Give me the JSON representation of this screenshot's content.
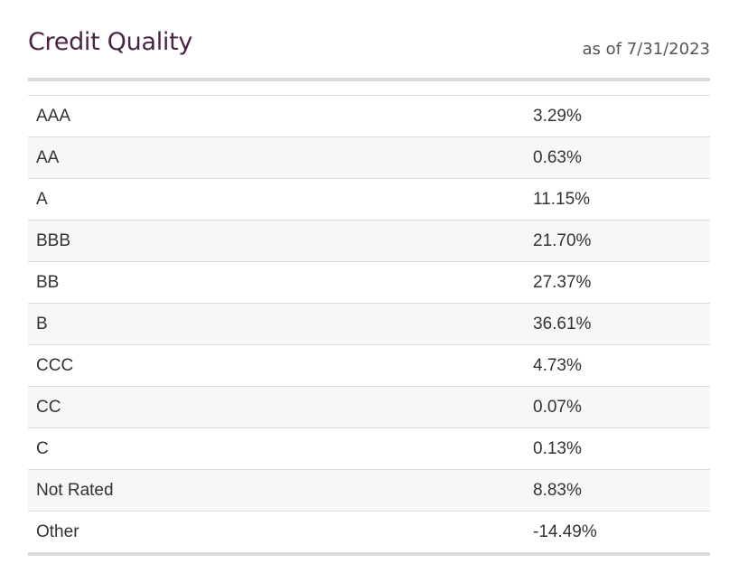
{
  "header": {
    "title": "Credit Quality",
    "as_of": "as of 7/31/2023"
  },
  "rows": [
    {
      "label": "AAA",
      "value": "3.29%"
    },
    {
      "label": "AA",
      "value": "0.63%"
    },
    {
      "label": "A",
      "value": "11.15%"
    },
    {
      "label": "BBB",
      "value": "21.70%"
    },
    {
      "label": "BB",
      "value": "27.37%"
    },
    {
      "label": "B",
      "value": "36.61%"
    },
    {
      "label": "CCC",
      "value": "4.73%"
    },
    {
      "label": "CC",
      "value": "0.07%"
    },
    {
      "label": "C",
      "value": "0.13%"
    },
    {
      "label": "Not Rated",
      "value": "8.83%"
    },
    {
      "label": "Other",
      "value": "-14.49%"
    }
  ]
}
